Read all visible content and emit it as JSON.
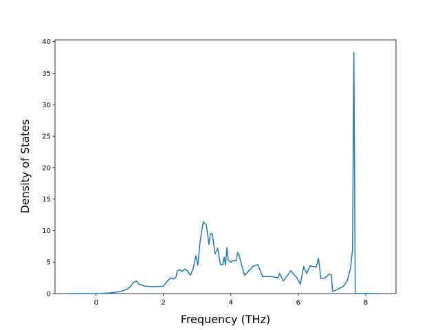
{
  "chart_data": {
    "type": "line",
    "xlabel": "Frequency (THz)",
    "ylabel": "Density of States",
    "x": [
      -0.78,
      0,
      0.41,
      0.71,
      0.92,
      1.02,
      1.1,
      1.2,
      1.27,
      1.43,
      1.63,
      1.96,
      2.0,
      2.12,
      2.22,
      2.29,
      2.37,
      2.41,
      2.49,
      2.55,
      2.63,
      2.71,
      2.8,
      2.88,
      2.96,
      3.02,
      3.08,
      3.12,
      3.18,
      3.27,
      3.35,
      3.39,
      3.45,
      3.53,
      3.61,
      3.69,
      3.76,
      3.8,
      3.84,
      3.88,
      3.92,
      4.0,
      4.08,
      4.16,
      4.2,
      4.24,
      4.33,
      4.41,
      4.65,
      4.8,
      4.94,
      5.2,
      5.4,
      5.45,
      5.55,
      5.78,
      5.96,
      6.06,
      6.16,
      6.25,
      6.35,
      6.53,
      6.6,
      6.67,
      6.8,
      6.92,
      6.98,
      7.02,
      7.14,
      7.35,
      7.45,
      7.55,
      7.61,
      7.65,
      7.69,
      8.43
    ],
    "series": [
      {
        "color": "#1f77b4",
        "values": [
          0,
          0,
          0.1,
          0.3,
          0.7,
          1.1,
          1.7,
          2.0,
          1.5,
          1.2,
          1.1,
          1.15,
          1.2,
          2.0,
          2.5,
          2.3,
          2.6,
          3.6,
          3.8,
          3.5,
          3.9,
          3.6,
          2.9,
          4.0,
          6.0,
          4.5,
          8.0,
          9.5,
          11.4,
          10.9,
          7.8,
          9.5,
          9.5,
          6.3,
          7.2,
          4.6,
          4.6,
          5.8,
          4.5,
          7.3,
          5.3,
          5.0,
          5.3,
          5.2,
          6.5,
          6.2,
          4.3,
          2.9,
          4.3,
          4.6,
          2.7,
          2.7,
          2.5,
          3.2,
          2.0,
          3.6,
          2.5,
          1.5,
          4.3,
          3.2,
          4.4,
          4.2,
          5.6,
          2.4,
          2.5,
          3.1,
          3.0,
          0.3,
          0.6,
          1.2,
          2.0,
          4.0,
          7.0,
          38.3,
          0,
          0
        ]
      }
    ],
    "xlim": [
      -1.22,
      8.9
    ],
    "ylim": [
      0,
      40.3
    ],
    "xticks": [
      0,
      2,
      4,
      6,
      8
    ],
    "yticks": [
      0,
      5,
      10,
      15,
      20,
      25,
      30,
      35,
      40
    ]
  }
}
